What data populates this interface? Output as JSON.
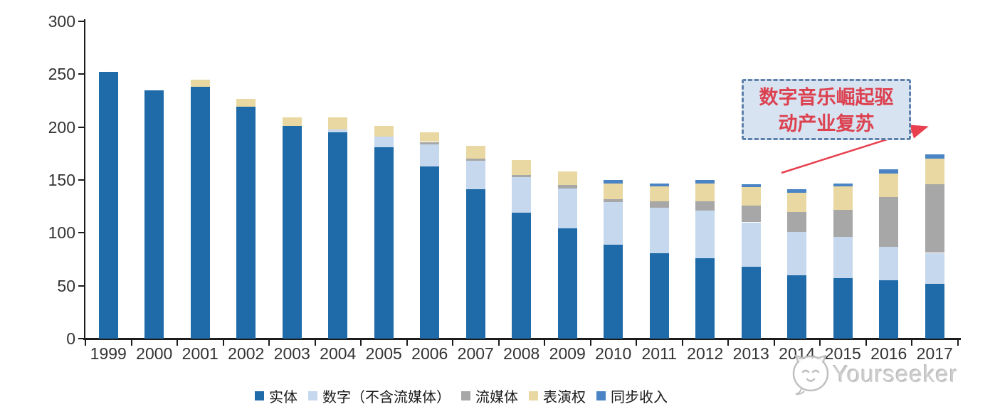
{
  "page": {
    "background": "#ffffff"
  },
  "annotation": {
    "line1": "数字音乐崛起驱",
    "line2": "动产业复苏",
    "box_fill": "#d8e3f1",
    "border_color": "#5d80ab",
    "text_color": "#dc4150",
    "arrow_color": "#e8404e"
  },
  "watermark": {
    "text": "Yourseeker",
    "icon": "cat-chat-bubble-icon",
    "color": "#cbcbcb"
  },
  "chart_data": {
    "type": "bar",
    "stacked": true,
    "title": "",
    "xlabel": "",
    "ylabel": "",
    "categories": [
      "1999",
      "2000",
      "2001",
      "2002",
      "2003",
      "2004",
      "2005",
      "2006",
      "2007",
      "2008",
      "2009",
      "2010",
      "2011",
      "2012",
      "2013",
      "2014",
      "2015",
      "2016",
      "2017"
    ],
    "series": [
      {
        "name": "实体",
        "color": "#1f6ba9",
        "values": [
          252,
          235,
          238,
          219,
          201,
          195,
          181,
          163,
          141,
          119,
          104,
          89,
          81,
          76,
          68,
          60,
          57,
          55,
          52
        ]
      },
      {
        "name": "数字（不含流媒体）",
        "color": "#c5d8ed",
        "values": [
          0,
          0,
          0,
          0,
          0,
          3,
          10,
          21,
          27,
          34,
          38,
          40,
          43,
          45,
          42,
          41,
          39,
          32,
          29
        ]
      },
      {
        "name": "流媒体",
        "color": "#a7a7a7",
        "values": [
          0,
          0,
          0,
          0,
          0,
          0,
          0,
          2,
          2,
          2,
          3,
          3,
          6,
          9,
          16,
          19,
          26,
          47,
          65
        ]
      },
      {
        "name": "表演权",
        "color": "#e9d8a1",
        "values": [
          0,
          0,
          7,
          8,
          8,
          11,
          10,
          9,
          12,
          14,
          13,
          15,
          14,
          17,
          17,
          18,
          22,
          22,
          24
        ]
      },
      {
        "name": "同步收入",
        "color": "#4a84c4",
        "values": [
          0,
          0,
          0,
          0,
          0,
          0,
          0,
          0,
          0,
          0,
          0,
          3,
          3,
          3,
          3,
          3,
          3,
          4,
          4
        ]
      }
    ],
    "ylim": [
      0,
      300
    ],
    "yticks": [
      0,
      50,
      100,
      150,
      200,
      250,
      300
    ],
    "grid": false,
    "legend_position": "bottom"
  }
}
